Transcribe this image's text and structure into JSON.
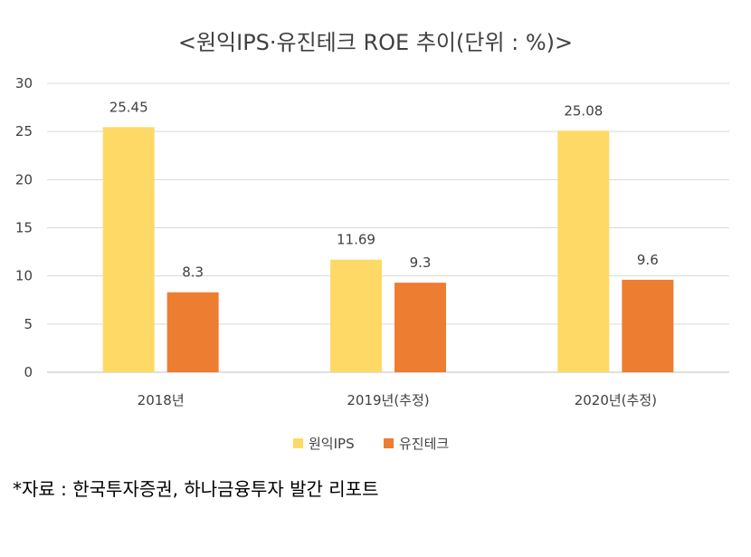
{
  "chart_data": {
    "type": "bar",
    "title": "<원익IPS·유진테크 ROE 추이(단위 : %)>",
    "categories": [
      "2018년",
      "2019년(추정)",
      "2020년(추정)"
    ],
    "series": [
      {
        "name": "원익IPS",
        "values": [
          25.45,
          11.69,
          25.08
        ],
        "labels": [
          "25.45",
          "11.69",
          "25.08"
        ],
        "color": "#FFD966"
      },
      {
        "name": "유진테크",
        "values": [
          8.3,
          9.3,
          9.6
        ],
        "labels": [
          "8.3",
          "9.3",
          "9.6"
        ],
        "color": "#ED7D31"
      }
    ],
    "ylim": [
      0,
      30
    ],
    "yticks": [
      "0",
      "5",
      "10",
      "15",
      "20",
      "25",
      "30"
    ],
    "grid": true,
    "legend_position": "bottom"
  },
  "source_note": "*자료 : 한국투자증권, 하나금융투자 발간 리포트"
}
